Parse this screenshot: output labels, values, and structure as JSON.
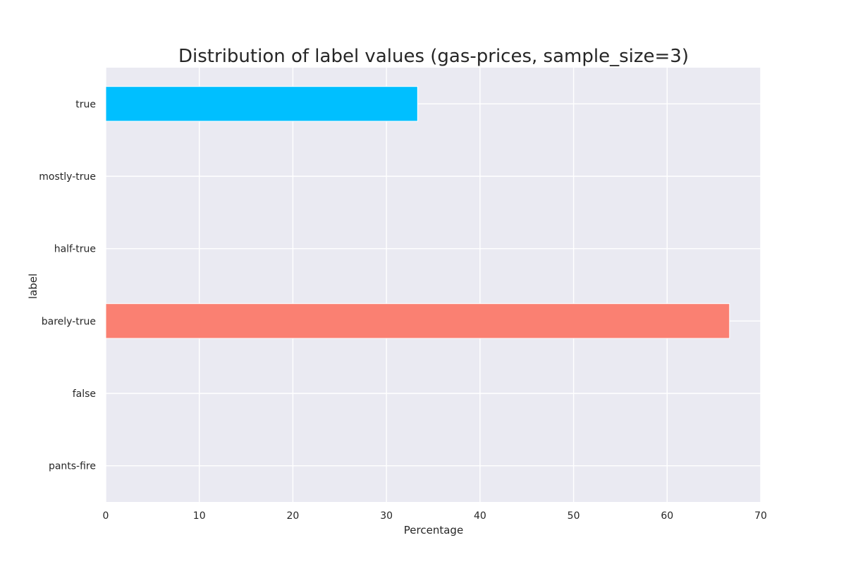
{
  "chart_data": {
    "type": "bar",
    "orientation": "horizontal",
    "title": "Distribution of label values (gas-prices, sample_size=3)",
    "xlabel": "Percentage",
    "ylabel": "label",
    "categories": [
      "true",
      "mostly-true",
      "half-true",
      "barely-true",
      "false",
      "pants-fire"
    ],
    "values": [
      33.33,
      0,
      0,
      66.67,
      0,
      0
    ],
    "bar_colors": [
      "#00BFFF",
      "#00BFFF",
      "#00BFFF",
      "#FA8072",
      "#FA8072",
      "#FA8072"
    ],
    "xlim": [
      0,
      70
    ],
    "xticks": [
      0,
      10,
      20,
      30,
      40,
      50,
      60,
      70
    ],
    "grid": true,
    "plot_background": "#EAEAF2",
    "grid_color": "#FFFFFF"
  }
}
